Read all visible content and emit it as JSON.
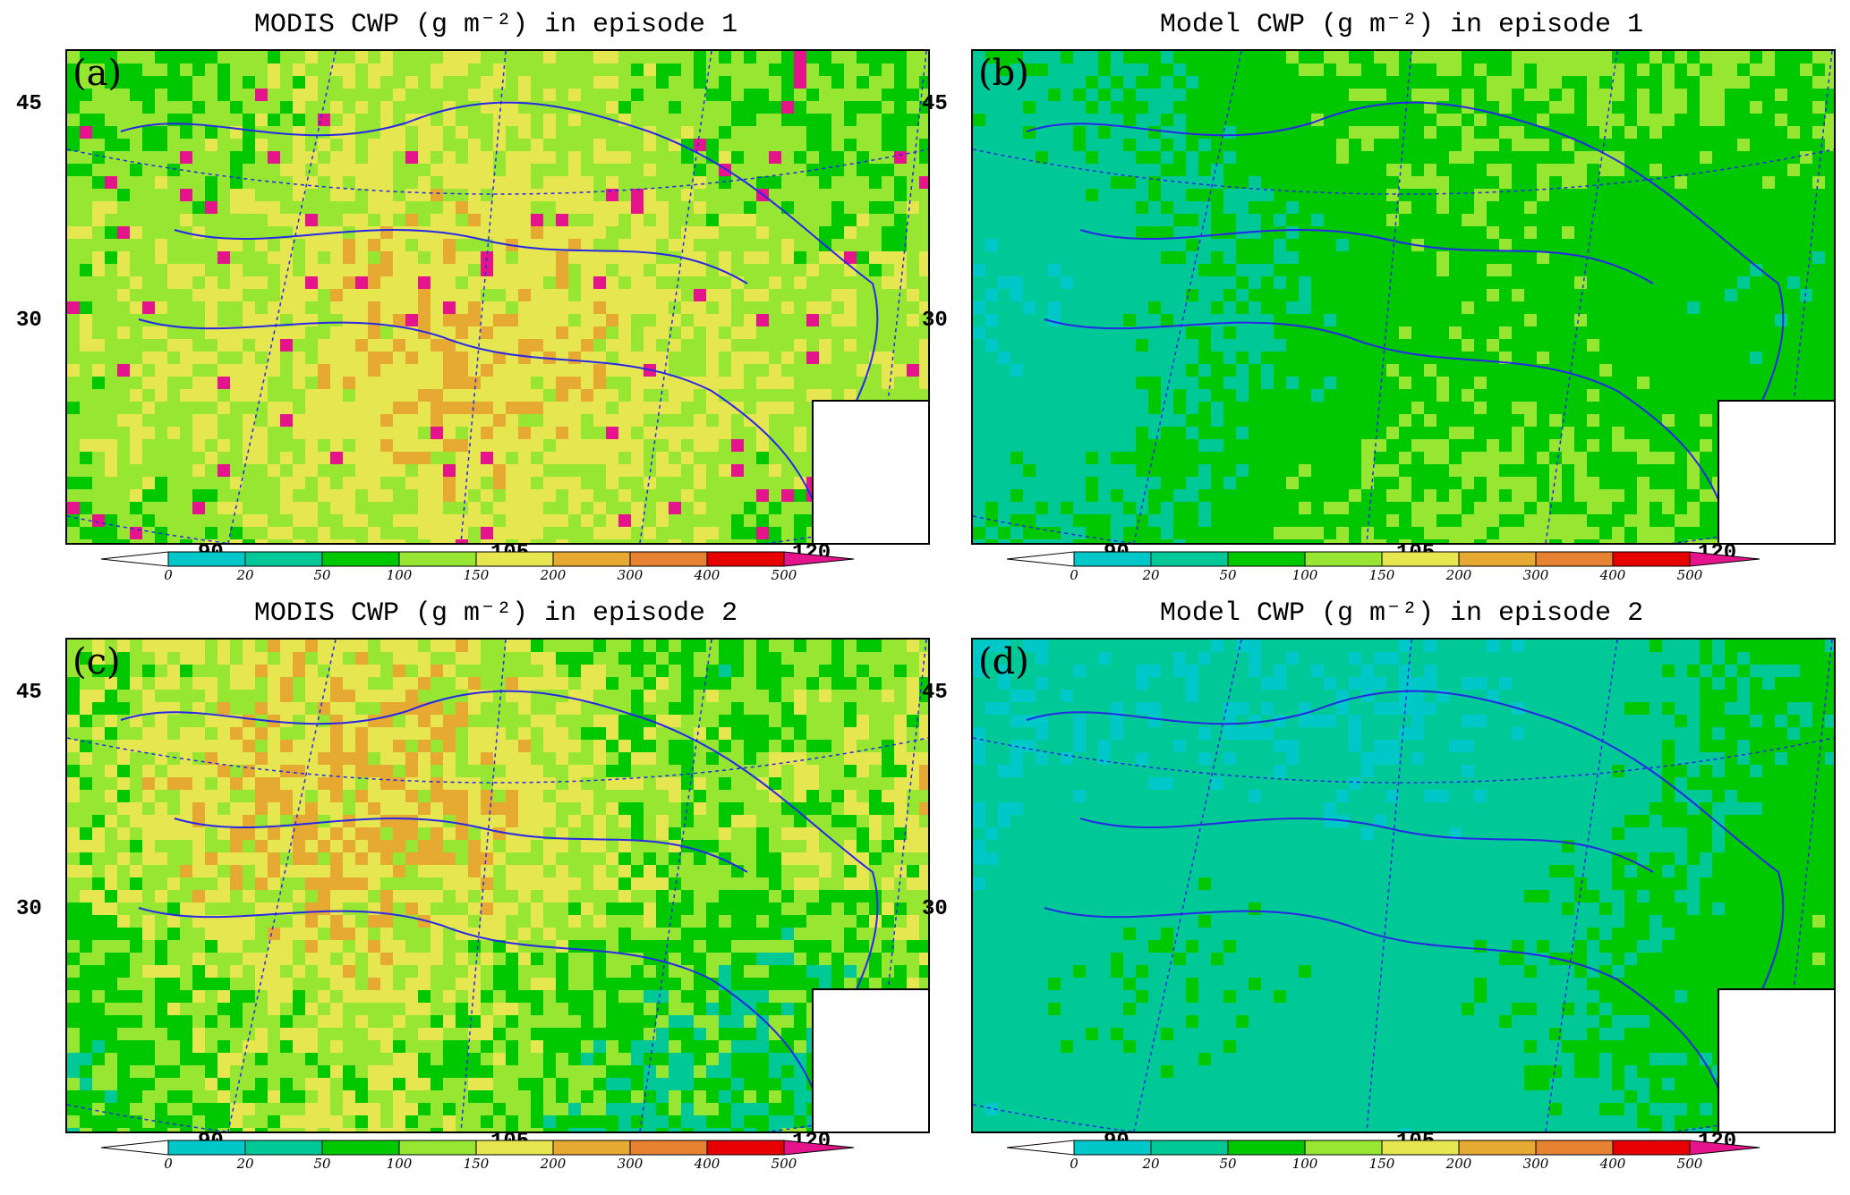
{
  "panels": [
    {
      "id": "a",
      "label": "(a)",
      "title": "MODIS CWP (g m⁻²) in episode 1",
      "bias": 3.3,
      "variance": 0.9,
      "seed": 11
    },
    {
      "id": "b",
      "label": "(b)",
      "title": "Model CWP (g m⁻²) in episode 1",
      "bias": 1.9,
      "variance": 0.6,
      "seed": 23
    },
    {
      "id": "c",
      "label": "(c)",
      "title": "MODIS CWP (g m⁻²) in episode 2",
      "bias": 3.0,
      "variance": 1.3,
      "seed": 37
    },
    {
      "id": "d",
      "label": "(d)",
      "title": "Model CWP (g m⁻²) in episode 2",
      "bias": 1.0,
      "variance": 0.5,
      "seed": 51
    }
  ],
  "lat_labels": [
    "45",
    "30"
  ],
  "lon_labels": [
    "90",
    "105",
    "120"
  ],
  "colorbar": {
    "ticks": [
      "0",
      "20",
      "50",
      "100",
      "150",
      "200",
      "300",
      "400",
      "500"
    ],
    "colors": [
      "#00c8c8",
      "#00c896",
      "#00c800",
      "#96e632",
      "#e6e650",
      "#e6aa32",
      "#e68232",
      "#e60000"
    ],
    "under_color": "#ffffff",
    "over_color": "#e6148c"
  },
  "colors": {
    "coast": "#2828e6",
    "grid": "#2828e6"
  }
}
